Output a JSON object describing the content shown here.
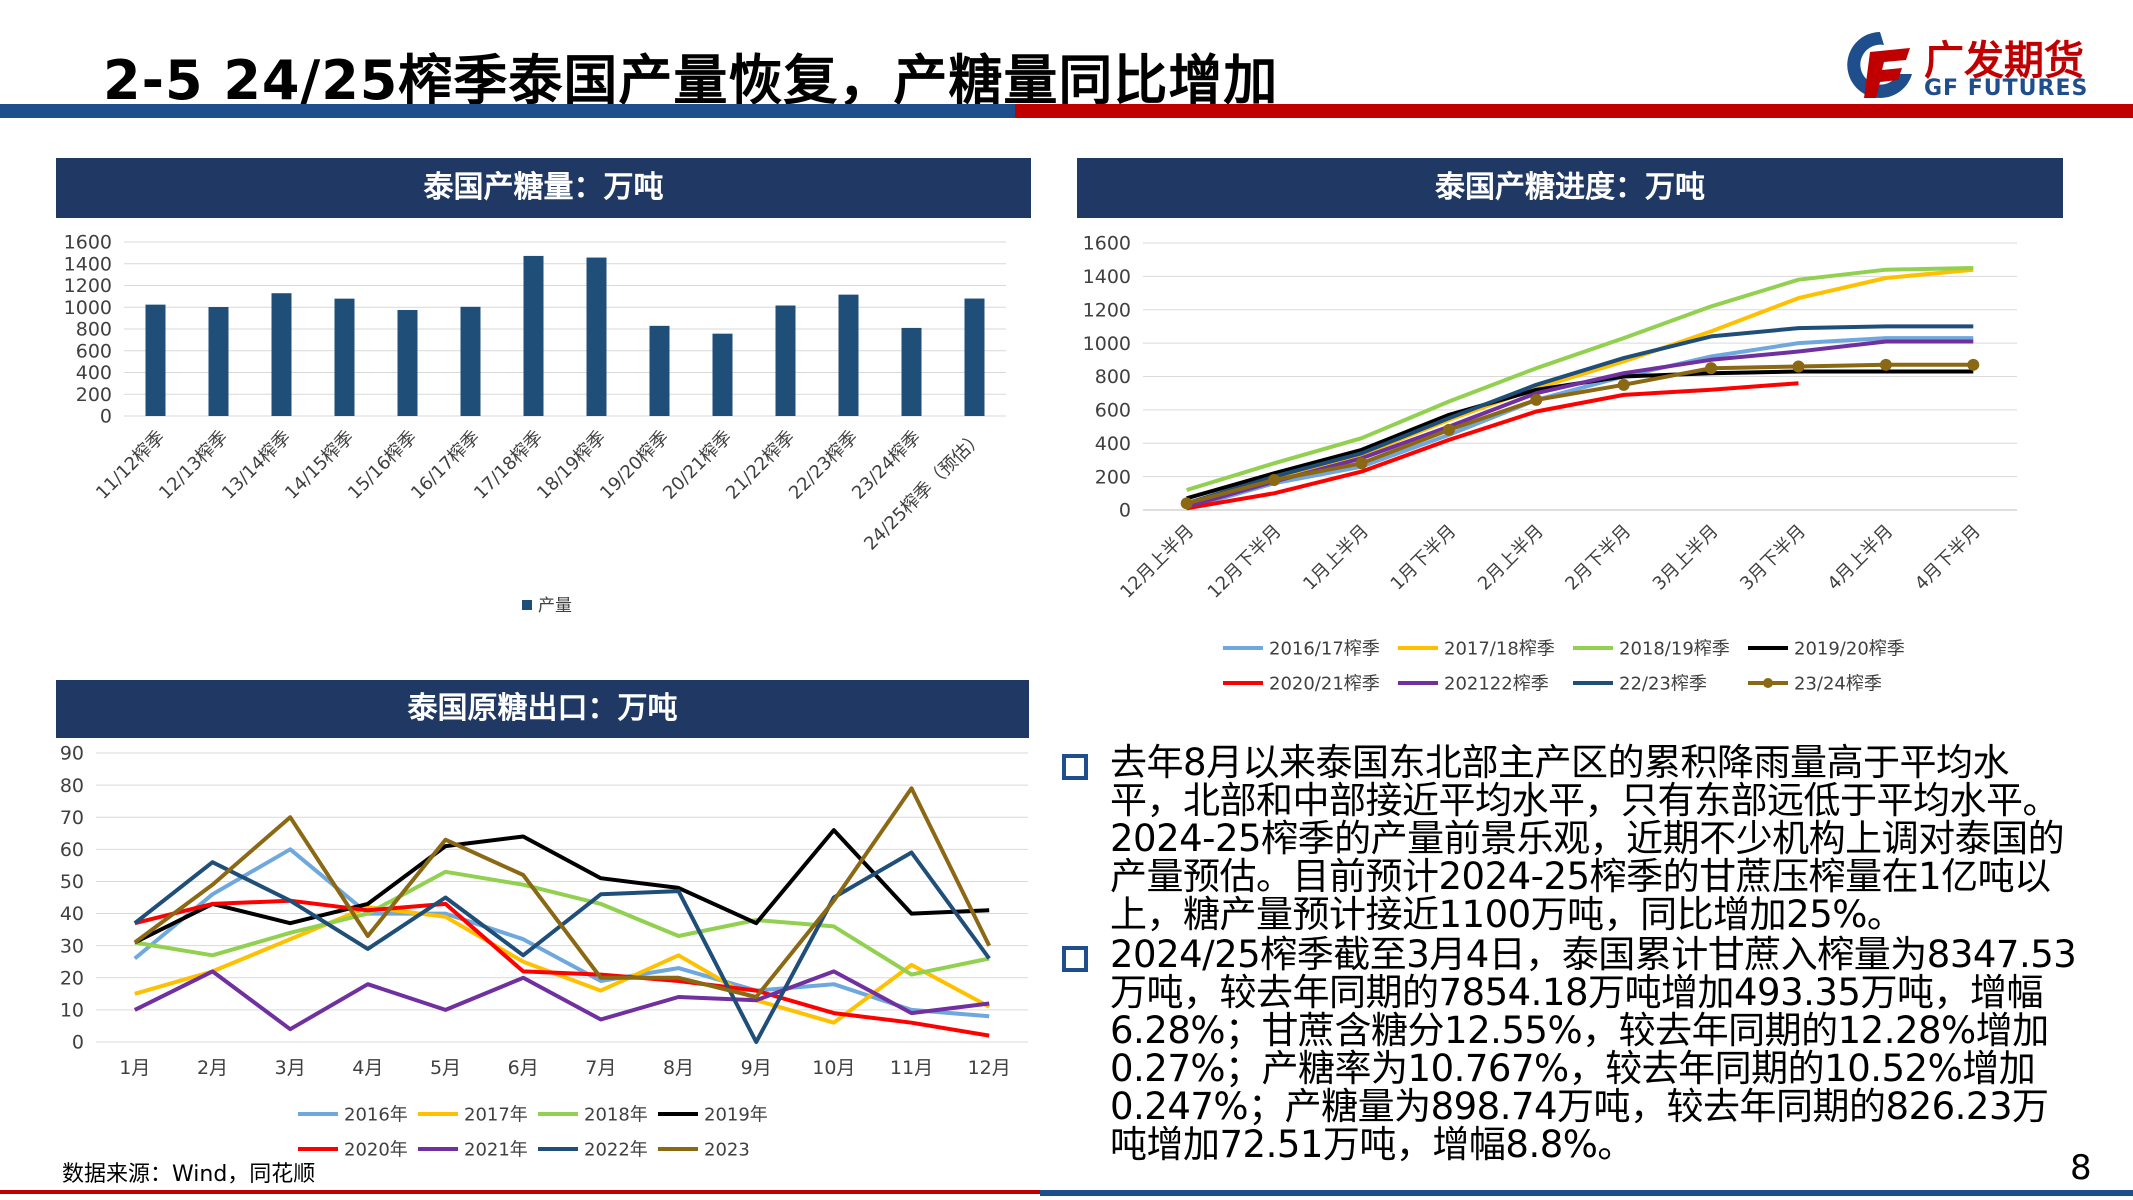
{
  "page": {
    "title": "2-5 24/25榨季泰国产量恢复，产糖量同比增加",
    "logo_cn": "广发期货",
    "logo_en": "GF FUTURES",
    "source": "数据来源：Wind，同花顺",
    "page_number": "8",
    "colors": {
      "navy": "#1f3864",
      "brand_blue": "#1f4e8c",
      "brand_red": "#c00000"
    }
  },
  "panels": {
    "production": {
      "header": "泰国产糖量：万吨"
    },
    "progress": {
      "header": "泰国产糖进度：万吨"
    },
    "export": {
      "header": "泰国原糖出口：万吨"
    }
  },
  "bullets": [
    "去年8月以来泰国东北部主产区的累积降雨量高于平均水平，北部和中部接近平均水平，只有东部远低于平均水平。2024-25榨季的产量前景乐观，近期不少机构上调对泰国的产量预估。目前预计2024-25榨季的甘蔗压榨量在1亿吨以上，糖产量预计接近1100万吨，同比增加25%。",
    "2024/25榨季截至3月4日，泰国累计甘蔗入榨量为8347.53万吨，较去年同期的7854.18万吨增加493.35万吨，增幅6.28%；甘蔗含糖分12.55%，较去年同期的12.28%增加0.27%；产糖率为10.767%，较去年同期的10.52%增加0.247%；产糖量为898.74万吨，较去年同期的826.23万吨增加72.51万吨，增幅8.8%。"
  ],
  "chart_data": [
    {
      "id": "production",
      "type": "bar",
      "categories": [
        "11/12榨季",
        "12/13榨季",
        "13/14榨季",
        "14/15榨季",
        "15/16榨季",
        "16/17榨季",
        "17/18榨季",
        "18/19榨季",
        "19/20榨季",
        "20/21榨季",
        "21/22榨季",
        "22/23榨季",
        "23/24榨季",
        "24/25榨季（预估）"
      ],
      "series": [
        {
          "name": "产量",
          "color": "#1f4e79",
          "values": [
            1024,
            1002,
            1129,
            1079,
            975,
            1004,
            1472,
            1457,
            829,
            757,
            1016,
            1116,
            810,
            1080
          ]
        }
      ],
      "yticks": [
        0,
        200,
        400,
        600,
        800,
        1000,
        1200,
        1400,
        1600
      ],
      "ylim": [
        0,
        1600
      ],
      "grid": true,
      "legend": "bottom"
    },
    {
      "id": "progress",
      "type": "line",
      "categories": [
        "12月上半月",
        "12月下半月",
        "1月上半月",
        "1月下半月",
        "2月上半月",
        "2月下半月",
        "3月上半月",
        "3月下半月",
        "4月上半月",
        "4月下半月"
      ],
      "series": [
        {
          "name": "2016/17榨季",
          "color": "#6fa8dc",
          "marker": false,
          "values": [
            10,
            160,
            260,
            450,
            660,
            800,
            920,
            1000,
            1030,
            1030
          ]
        },
        {
          "name": "2017/18榨季",
          "color": "#ffc000",
          "marker": false,
          "values": [
            30,
            190,
            330,
            540,
            730,
            890,
            1070,
            1270,
            1390,
            1440
          ]
        },
        {
          "name": "2018/19榨季",
          "color": "#92d050",
          "marker": false,
          "values": [
            120,
            280,
            430,
            650,
            850,
            1030,
            1220,
            1380,
            1440,
            1450
          ]
        },
        {
          "name": "2019/20榨季",
          "color": "#000000",
          "marker": false,
          "values": [
            70,
            220,
            360,
            570,
            720,
            800,
            820,
            830,
            830,
            830
          ]
        },
        {
          "name": "2020/21榨季",
          "color": "#ff0000",
          "marker": false,
          "values": [
            10,
            100,
            230,
            420,
            590,
            690,
            720,
            760,
            null,
            null
          ]
        },
        {
          "name": "202122榨季",
          "color": "#7030a0",
          "marker": false,
          "values": [
            20,
            170,
            310,
            500,
            700,
            820,
            900,
            950,
            1010,
            1010
          ]
        },
        {
          "name": "22/23榨季",
          "color": "#1f4e79",
          "marker": false,
          "values": [
            40,
            200,
            340,
            550,
            750,
            910,
            1040,
            1090,
            1100,
            1100
          ]
        },
        {
          "name": "23/24榨季",
          "color": "#8b6914",
          "marker": true,
          "values": [
            40,
            180,
            280,
            480,
            660,
            750,
            850,
            860,
            870,
            870
          ]
        }
      ],
      "yticks": [
        0,
        200,
        400,
        600,
        800,
        1000,
        1200,
        1400,
        1600
      ],
      "ylim": [
        0,
        1600
      ],
      "grid": true,
      "legend": "bottom"
    },
    {
      "id": "export",
      "type": "line",
      "categories": [
        "1月",
        "2月",
        "3月",
        "4月",
        "5月",
        "6月",
        "7月",
        "8月",
        "9月",
        "10月",
        "11月",
        "12月"
      ],
      "series": [
        {
          "name": "2016年",
          "color": "#6fa8dc",
          "values": [
            26,
            46,
            60,
            40,
            40,
            32,
            19,
            23,
            16,
            18,
            10,
            8
          ]
        },
        {
          "name": "2017年",
          "color": "#ffc000",
          "values": [
            15,
            22,
            32,
            42,
            39,
            25,
            16,
            27,
            13,
            6,
            24,
            11
          ]
        },
        {
          "name": "2018年",
          "color": "#92d050",
          "values": [
            31,
            27,
            34,
            40,
            53,
            49,
            43,
            33,
            38,
            36,
            21,
            26
          ]
        },
        {
          "name": "2019年",
          "color": "#000000",
          "values": [
            31,
            43,
            37,
            43,
            61,
            64,
            51,
            48,
            37,
            66,
            40,
            41
          ]
        },
        {
          "name": "2020年",
          "color": "#ff0000",
          "values": [
            37,
            43,
            44,
            41,
            43,
            22,
            21,
            19,
            16,
            9,
            6,
            2
          ]
        },
        {
          "name": "2021年",
          "color": "#7030a0",
          "values": [
            10,
            22,
            4,
            18,
            10,
            20,
            7,
            14,
            13,
            22,
            9,
            12
          ]
        },
        {
          "name": "2022年",
          "color": "#1f4e79",
          "values": [
            37,
            56,
            44,
            29,
            45,
            27,
            46,
            47,
            0,
            45,
            59,
            26
          ]
        },
        {
          "name": "2023",
          "color": "#8b6914",
          "values": [
            31,
            49,
            70,
            33,
            63,
            52,
            20,
            20,
            14,
            44,
            79,
            30
          ]
        }
      ],
      "yticks": [
        0,
        10,
        20,
        30,
        40,
        50,
        60,
        70,
        80,
        90
      ],
      "ylim": [
        0,
        90
      ],
      "grid": true,
      "legend": "bottom"
    }
  ]
}
